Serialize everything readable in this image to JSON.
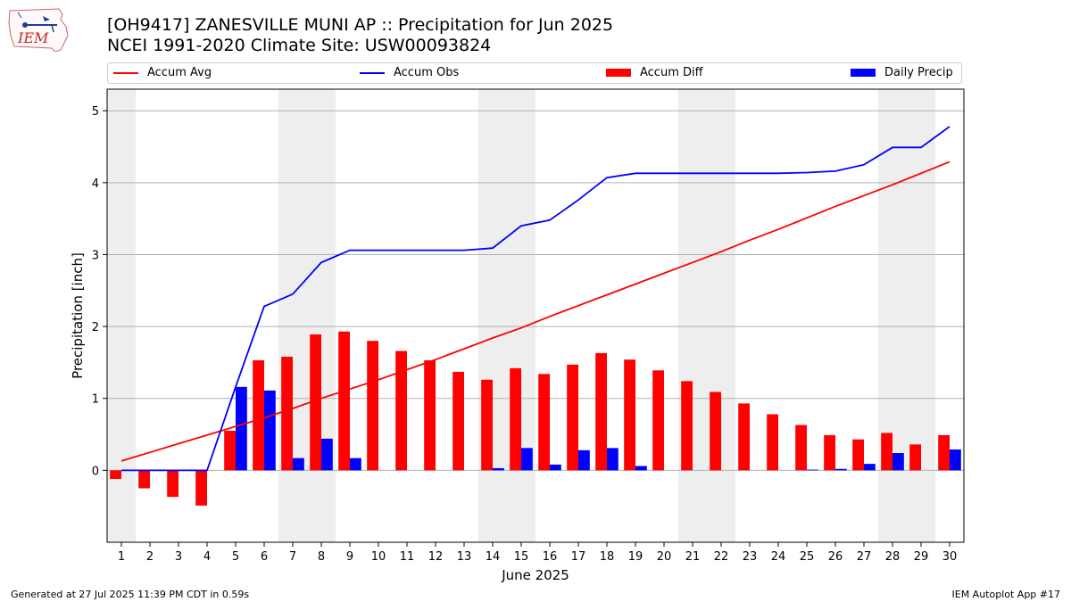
{
  "header": {
    "title_line1": "[OH9417] ZANESVILLE MUNI AP :: Precipitation for Jun 2025",
    "title_line2": "NCEI 1991-2020 Climate Site: USW00093824",
    "logo_text": "IEM"
  },
  "footer": {
    "generated": "Generated at 27 Jul 2025 11:39 PM CDT in 0.59s",
    "app": "IEM Autoplot App #17"
  },
  "legend": {
    "accum_avg": "Accum Avg",
    "accum_obs": "Accum Obs",
    "accum_diff": "Accum Diff",
    "daily_precip": "Daily Precip"
  },
  "colors": {
    "accum_avg": "#ff0000",
    "accum_obs": "#0000ff",
    "accum_diff": "#ff0000",
    "daily_precip": "#0000ff",
    "weekend_band": "#eeeeee",
    "grid": "#b0b0b0"
  },
  "chart_data": {
    "type": "bar",
    "xlabel": "June 2025",
    "ylabel": "Precipitation [inch]",
    "xlim": [
      0.5,
      30.5
    ],
    "ylim": [
      -1.0,
      5.3
    ],
    "yticks": [
      0,
      1,
      2,
      3,
      4,
      5
    ],
    "grid": "horizontal",
    "legend_position": "top",
    "weekend_bands": [
      [
        1,
        1
      ],
      [
        7,
        8
      ],
      [
        14,
        15
      ],
      [
        21,
        22
      ],
      [
        28,
        29
      ]
    ],
    "days": [
      1,
      2,
      3,
      4,
      5,
      6,
      7,
      8,
      9,
      10,
      11,
      12,
      13,
      14,
      15,
      16,
      17,
      18,
      19,
      20,
      21,
      22,
      23,
      24,
      25,
      26,
      27,
      28,
      29,
      30
    ],
    "series": [
      {
        "name": "Accum Avg",
        "kind": "line",
        "values": [
          0.13,
          0.25,
          0.37,
          0.49,
          0.61,
          0.73,
          0.86,
          1.0,
          1.13,
          1.26,
          1.4,
          1.54,
          1.69,
          1.84,
          1.98,
          2.14,
          2.29,
          2.44,
          2.59,
          2.74,
          2.89,
          3.04,
          3.2,
          3.35,
          3.51,
          3.67,
          3.82,
          3.97,
          4.13,
          4.29
        ]
      },
      {
        "name": "Accum Obs",
        "kind": "line",
        "values": [
          0.0,
          0.0,
          0.0,
          0.0,
          1.16,
          2.28,
          2.45,
          2.89,
          3.06,
          3.06,
          3.06,
          3.06,
          3.06,
          3.09,
          3.4,
          3.48,
          3.76,
          4.07,
          4.13,
          4.13,
          4.13,
          4.13,
          4.13,
          4.13,
          4.14,
          4.16,
          4.25,
          4.49,
          4.49,
          4.78
        ]
      },
      {
        "name": "Accum Diff",
        "kind": "bar",
        "values": [
          -0.12,
          -0.25,
          -0.37,
          -0.49,
          0.55,
          1.53,
          1.58,
          1.89,
          1.93,
          1.8,
          1.66,
          1.53,
          1.37,
          1.26,
          1.42,
          1.34,
          1.47,
          1.63,
          1.54,
          1.39,
          1.24,
          1.09,
          0.93,
          0.78,
          0.63,
          0.49,
          0.43,
          0.52,
          0.36,
          0.49
        ]
      },
      {
        "name": "Daily Precip",
        "kind": "bar",
        "values": [
          0,
          0,
          0,
          0,
          1.16,
          1.11,
          0.17,
          0.44,
          0.17,
          0,
          0,
          0,
          0,
          0.03,
          0.31,
          0.08,
          0.28,
          0.31,
          0.06,
          0,
          0,
          0,
          0,
          0,
          0.01,
          0.02,
          0.09,
          0.24,
          0,
          0.29
        ]
      }
    ]
  }
}
